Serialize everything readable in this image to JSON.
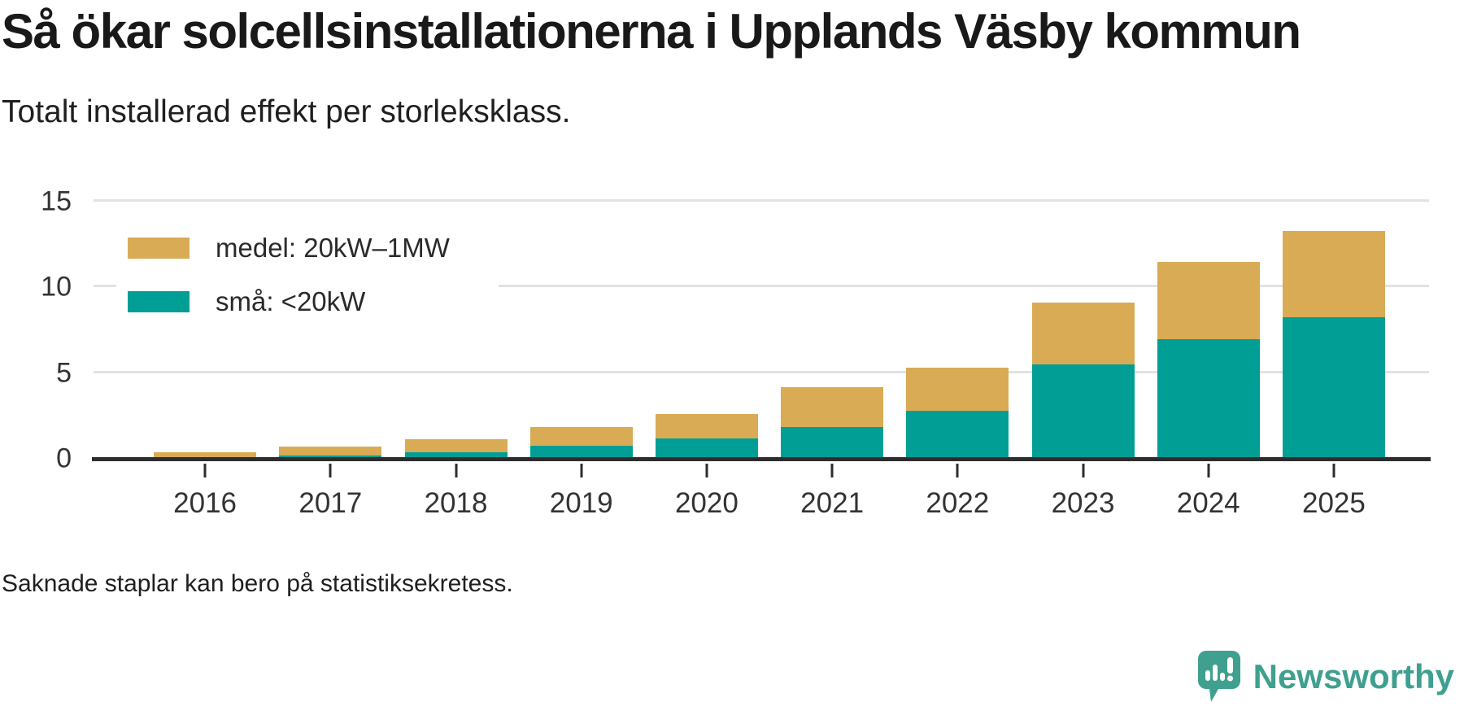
{
  "title": "Så ökar solcellsinstallationerna i Upplands Väsby kommun",
  "subtitle": "Totalt installerad effekt per storleksklass.",
  "footer_note": "Saknade staplar kan bero på statistiksekretess.",
  "brand": {
    "name": "Newsworthy",
    "color": "#3fa08f",
    "icon": "newsworthy-speech-bubble-chart-icon"
  },
  "chart_data": {
    "type": "bar",
    "stacked": true,
    "title": "Så ökar solcellsinstallationerna i Upplands Väsby kommun",
    "subtitle": "Totalt installerad effekt per storleksklass.",
    "xlabel": "",
    "ylabel": "",
    "categories": [
      "2016",
      "2017",
      "2018",
      "2019",
      "2020",
      "2021",
      "2022",
      "2023",
      "2024",
      "2025"
    ],
    "series": [
      {
        "name": "medel: 20kW–1MW",
        "color": "#d9ab55",
        "stack_order": "top",
        "values": [
          0.4,
          0.5,
          0.75,
          1.1,
          1.4,
          2.3,
          2.5,
          3.6,
          4.5,
          5.0
        ]
      },
      {
        "name": "små: <20kW",
        "color": "#009e94",
        "stack_order": "bottom",
        "values": [
          0.0,
          0.2,
          0.4,
          0.75,
          1.2,
          1.85,
          2.8,
          5.5,
          6.95,
          8.25
        ]
      }
    ],
    "stacked_totals": [
      0.4,
      0.7,
      1.15,
      1.85,
      2.6,
      4.15,
      5.3,
      9.1,
      11.45,
      13.25
    ],
    "ylim": [
      0,
      16.8
    ],
    "yticks": [
      0,
      5,
      10,
      15
    ],
    "grid": true,
    "legend_position": "top-left-inside"
  }
}
